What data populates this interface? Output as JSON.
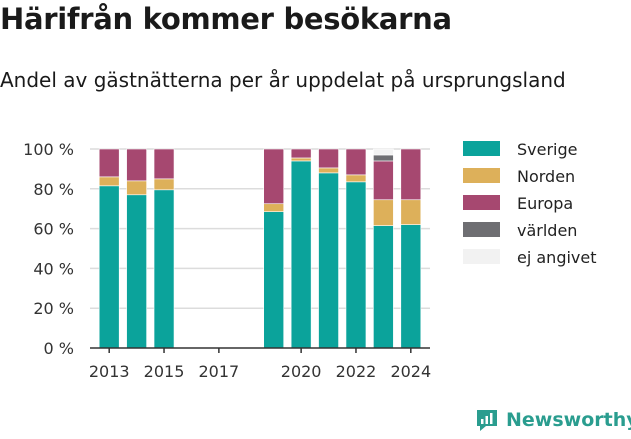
{
  "title": "Härifrån kommer besökarna",
  "subtitle": "Andel av gästnätterna per år uppdelat på ursprungsland",
  "brand": "Newsworthy",
  "colors": {
    "sverige": "#0ba39b",
    "norden": "#ddb05a",
    "europa": "#a64870",
    "varlden": "#6e6e72",
    "ej_angivet": "#f2f2f2",
    "grid": "#dcdcdc",
    "axis": "#333333",
    "brand": "#2a9d8f"
  },
  "chart_data": {
    "type": "bar",
    "stacked": true,
    "x": [
      2013,
      2014,
      2015,
      2019,
      2020,
      2021,
      2022,
      2023,
      2024
    ],
    "x_ticks": [
      "2013",
      "2015",
      "2017",
      "2020",
      "2022",
      "2024"
    ],
    "x_tick_values": [
      2013,
      2015,
      2017,
      2020,
      2022,
      2024
    ],
    "xlim": [
      2012.3,
      2024.7
    ],
    "ylim": [
      0,
      100
    ],
    "y_ticks": [
      "0 %",
      "20 %",
      "40 %",
      "60 %",
      "80 %",
      "100 %"
    ],
    "y_tick_values": [
      0,
      20,
      40,
      60,
      80,
      100
    ],
    "grid": true,
    "legend_position": "right",
    "series": [
      {
        "name": "Sverige",
        "color_key": "sverige",
        "values": [
          81.5,
          77,
          79.5,
          68.5,
          94,
          88,
          83.5,
          61.5,
          62
        ]
      },
      {
        "name": "Norden",
        "color_key": "norden",
        "values": [
          4.5,
          7,
          5.5,
          4,
          1.5,
          2.5,
          3.5,
          13,
          12.5
        ]
      },
      {
        "name": "Europa",
        "color_key": "europa",
        "values": [
          14,
          16,
          15,
          27.5,
          4.5,
          9.5,
          13,
          19.5,
          25.5
        ]
      },
      {
        "name": "världen",
        "color_key": "varlden",
        "values": [
          0,
          0,
          0,
          0,
          0,
          0,
          0,
          3,
          0
        ]
      },
      {
        "name": "ej angivet",
        "color_key": "ej_angivet",
        "values": [
          0,
          0,
          0,
          0,
          0,
          0,
          0,
          3,
          0
        ]
      }
    ]
  }
}
